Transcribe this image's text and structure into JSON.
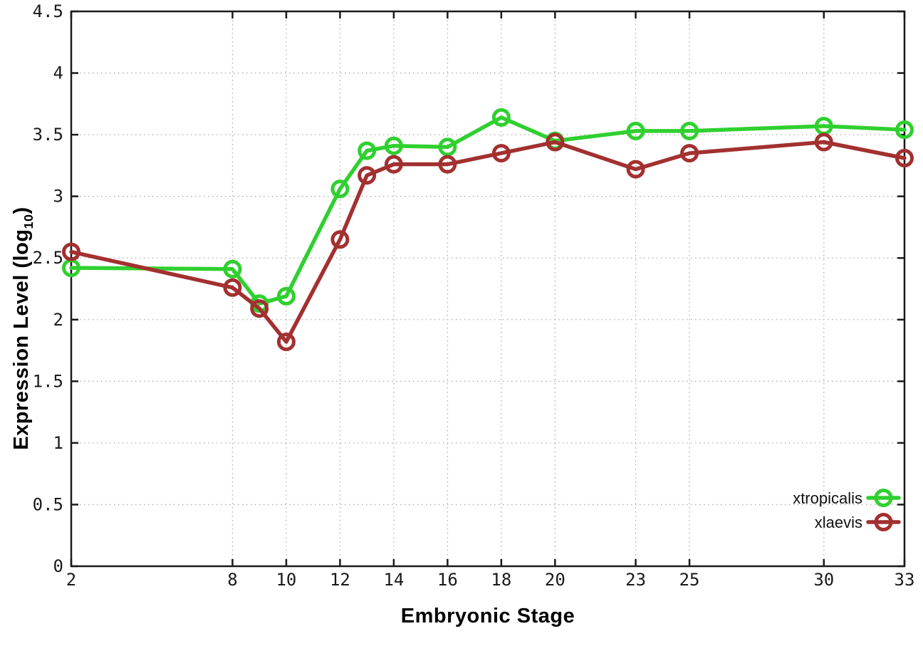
{
  "chart_data": {
    "type": "line",
    "title": "",
    "xlabel": "Embryonic Stage",
    "ylabel": "Expression Level (log10)",
    "ylabel_parts": {
      "prefix": "Expression Level (log",
      "subscript": "10",
      "suffix": ")"
    },
    "xlim": [
      2,
      33
    ],
    "ylim": [
      0,
      4.5
    ],
    "x_ticks": [
      2,
      8,
      10,
      12,
      14,
      16,
      18,
      20,
      23,
      25,
      30,
      33
    ],
    "y_ticks": [
      0,
      0.5,
      1,
      1.5,
      2,
      2.5,
      3,
      3.5,
      4,
      4.5
    ],
    "grid": true,
    "legend_position": "bottom-right",
    "marker": "open-circle",
    "x": [
      2,
      8,
      9,
      10,
      12,
      13,
      14,
      16,
      18,
      20,
      23,
      25,
      30,
      33
    ],
    "series": [
      {
        "name": "xtropicalis",
        "color": "#2fd02f",
        "values": [
          2.42,
          2.41,
          2.13,
          2.19,
          3.06,
          3.37,
          3.41,
          3.4,
          3.64,
          3.45,
          3.53,
          3.53,
          3.57,
          3.54
        ]
      },
      {
        "name": "xlaevis",
        "color": "#a33030",
        "values": [
          2.55,
          2.26,
          2.09,
          1.82,
          2.65,
          3.17,
          3.26,
          3.26,
          3.35,
          3.44,
          3.22,
          3.35,
          3.44,
          3.31
        ]
      }
    ],
    "colors": {
      "grid": "#aaaaaa",
      "axis": "#1a1a1a",
      "text": "#1a1a1a"
    }
  }
}
